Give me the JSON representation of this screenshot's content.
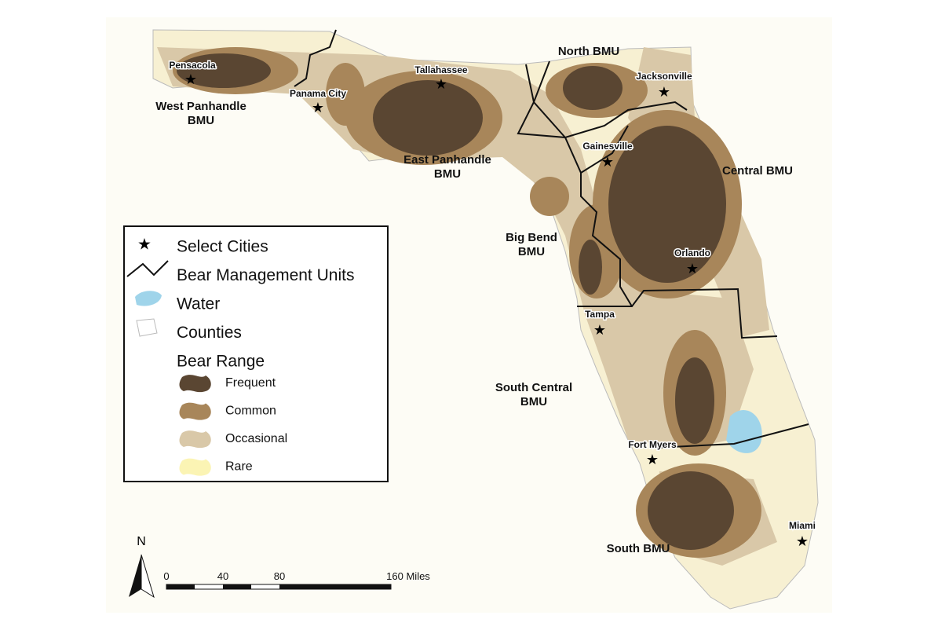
{
  "cities": [
    {
      "label": "Pensacola"
    },
    {
      "label": "Panama City"
    },
    {
      "label": "Tallahassee"
    },
    {
      "label": "Jacksonville"
    },
    {
      "label": "Gainesville"
    },
    {
      "label": "Orlando"
    },
    {
      "label": "Tampa"
    },
    {
      "label": "Fort Myers"
    },
    {
      "label": "Miami"
    }
  ],
  "bmus": [
    {
      "lines": [
        "West Panhandle",
        "BMU"
      ]
    },
    {
      "lines": [
        "East Panhandle",
        "BMU"
      ]
    },
    {
      "lines": [
        "North BMU"
      ]
    },
    {
      "lines": [
        "Central BMU"
      ]
    },
    {
      "lines": [
        "Big Bend",
        "BMU"
      ]
    },
    {
      "lines": [
        "South Central",
        "BMU"
      ]
    },
    {
      "lines": [
        "South BMU"
      ]
    }
  ],
  "legend": {
    "items": [
      "Select Cities",
      "Bear Management Units",
      "Water",
      "Counties",
      "Bear Range"
    ],
    "range": [
      "Frequent",
      "Common",
      "Occasional",
      "Rare"
    ]
  },
  "scale": {
    "labels": [
      "0",
      "40",
      "80",
      "160 Miles"
    ]
  },
  "north": "N"
}
